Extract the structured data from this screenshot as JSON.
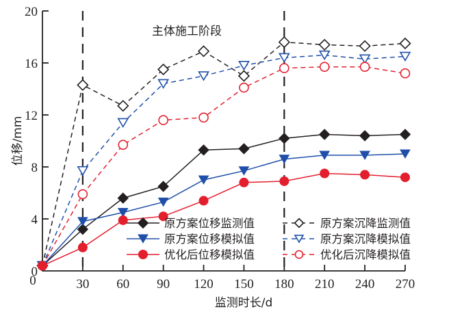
{
  "chart_data": {
    "type": "line",
    "title": "",
    "xlabel": "监测时长/d",
    "ylabel": "位移/mm",
    "xlim": [
      0,
      270
    ],
    "ylim": [
      0,
      20
    ],
    "xticks": [
      0,
      30,
      60,
      90,
      120,
      150,
      180,
      210,
      240,
      270
    ],
    "xtick_labels": [
      "0",
      "30",
      "60",
      "90",
      "120",
      "150",
      "180",
      "210",
      "240",
      "270"
    ],
    "yticks": [
      0,
      4,
      8,
      12,
      16,
      20
    ],
    "ytick_labels": [
      "0",
      "4",
      "8",
      "12",
      "16",
      "20"
    ],
    "grid": false,
    "annotation": "主体施工阶段",
    "stage_lines_x": [
      30,
      180
    ],
    "x": [
      0,
      30,
      60,
      90,
      120,
      150,
      180,
      210,
      240,
      270
    ],
    "series": [
      {
        "name": "原方案位移监测值",
        "color": "#231f20",
        "marker": "diamond",
        "filled": true,
        "dashed": false,
        "values": [
          0.4,
          3.2,
          5.6,
          6.5,
          9.3,
          9.4,
          10.2,
          10.5,
          10.4,
          10.5
        ]
      },
      {
        "name": "原方案位移模拟值",
        "color": "#1f4fa8",
        "marker": "triangle-down",
        "filled": true,
        "dashed": false,
        "values": [
          0.4,
          3.8,
          4.5,
          5.3,
          7.0,
          7.7,
          8.6,
          8.9,
          8.9,
          9.0
        ]
      },
      {
        "name": "优化后位移模拟值",
        "color": "#e31e2d",
        "marker": "circle",
        "filled": true,
        "dashed": false,
        "values": [
          0.4,
          1.8,
          3.9,
          4.2,
          5.4,
          6.8,
          6.9,
          7.5,
          7.4,
          7.2
        ]
      },
      {
        "name": "原方案沉降监测值",
        "color": "#231f20",
        "marker": "diamond",
        "filled": false,
        "dashed": true,
        "values": [
          0.4,
          14.3,
          12.7,
          15.5,
          16.9,
          15.0,
          17.6,
          17.4,
          17.3,
          17.5
        ]
      },
      {
        "name": "原方案沉降模拟值",
        "color": "#1f4fa8",
        "marker": "triangle-down",
        "filled": false,
        "dashed": true,
        "values": [
          0.4,
          7.7,
          11.4,
          14.4,
          15.0,
          15.8,
          16.4,
          16.6,
          16.3,
          16.5
        ]
      },
      {
        "name": "优化后沉降模拟值",
        "color": "#e31e2d",
        "marker": "circle",
        "filled": false,
        "dashed": true,
        "values": [
          0.4,
          5.9,
          9.7,
          11.6,
          11.8,
          14.1,
          15.6,
          15.7,
          15.7,
          15.2
        ]
      }
    ],
    "legend_position": "bottom-right"
  }
}
